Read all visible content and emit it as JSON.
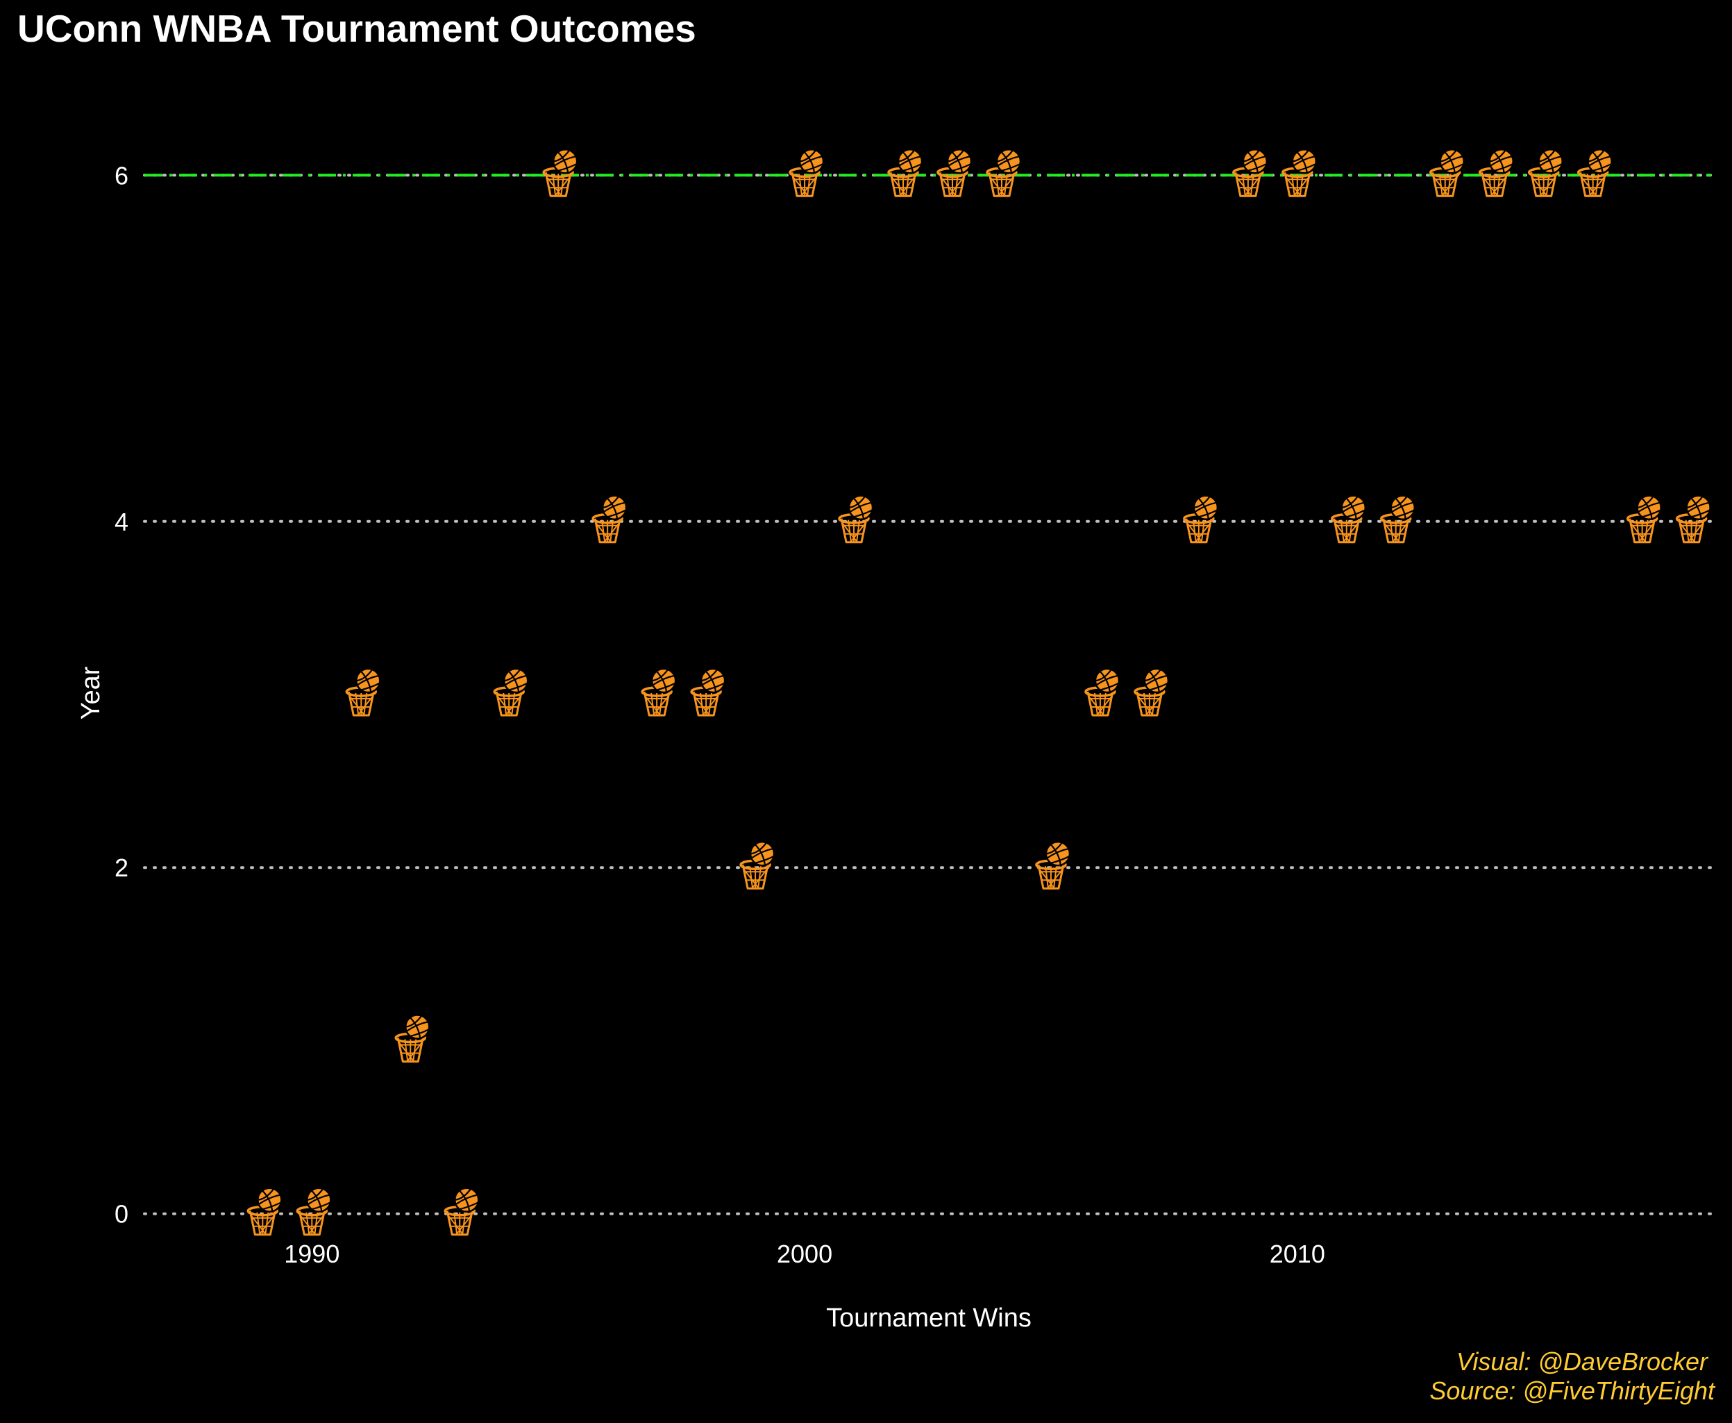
{
  "chart_data": {
    "type": "scatter",
    "title": "UConn WNBA Tournament Outcomes",
    "xlabel": "Tournament Wins",
    "ylabel": "Year",
    "xlim": [
      1986.6,
      2018.4
    ],
    "ylim": [
      -0.25,
      6.25
    ],
    "x_ticks": [
      1990,
      2000,
      2010
    ],
    "y_ticks": [
      0,
      2,
      4,
      6
    ],
    "x_tick_labels": [
      "1990",
      "2000",
      "2010"
    ],
    "y_tick_labels": [
      "0",
      "2",
      "4",
      "6"
    ],
    "grid": "dotted horizontal lines at y ticks",
    "highlight_line": {
      "y": 6,
      "style": "green dash-dot",
      "color": "#22ee22"
    },
    "marker": "basketball-hoop-icon",
    "marker_colors": {
      "ball": "#f7941d",
      "net": "#f7941d"
    },
    "points": [
      {
        "x": 1989,
        "y": 0
      },
      {
        "x": 1990,
        "y": 0
      },
      {
        "x": 1991,
        "y": 3
      },
      {
        "x": 1992,
        "y": 1
      },
      {
        "x": 1993,
        "y": 0
      },
      {
        "x": 1994,
        "y": 3
      },
      {
        "x": 1995,
        "y": 6
      },
      {
        "x": 1996,
        "y": 4
      },
      {
        "x": 1997,
        "y": 3
      },
      {
        "x": 1998,
        "y": 3
      },
      {
        "x": 1999,
        "y": 2
      },
      {
        "x": 2000,
        "y": 6
      },
      {
        "x": 2001,
        "y": 4
      },
      {
        "x": 2002,
        "y": 6
      },
      {
        "x": 2003,
        "y": 6
      },
      {
        "x": 2004,
        "y": 6
      },
      {
        "x": 2005,
        "y": 2
      },
      {
        "x": 2006,
        "y": 3
      },
      {
        "x": 2007,
        "y": 3
      },
      {
        "x": 2008,
        "y": 4
      },
      {
        "x": 2009,
        "y": 6
      },
      {
        "x": 2010,
        "y": 6
      },
      {
        "x": 2011,
        "y": 4
      },
      {
        "x": 2012,
        "y": 4
      },
      {
        "x": 2013,
        "y": 6
      },
      {
        "x": 2014,
        "y": 6
      },
      {
        "x": 2015,
        "y": 6
      },
      {
        "x": 2016,
        "y": 6
      },
      {
        "x": 2017,
        "y": 4
      },
      {
        "x": 2018,
        "y": 4
      }
    ]
  },
  "caption": {
    "visual": "Visual: @DaveBrocker",
    "source": "Source: @FiveThirtyEight"
  }
}
